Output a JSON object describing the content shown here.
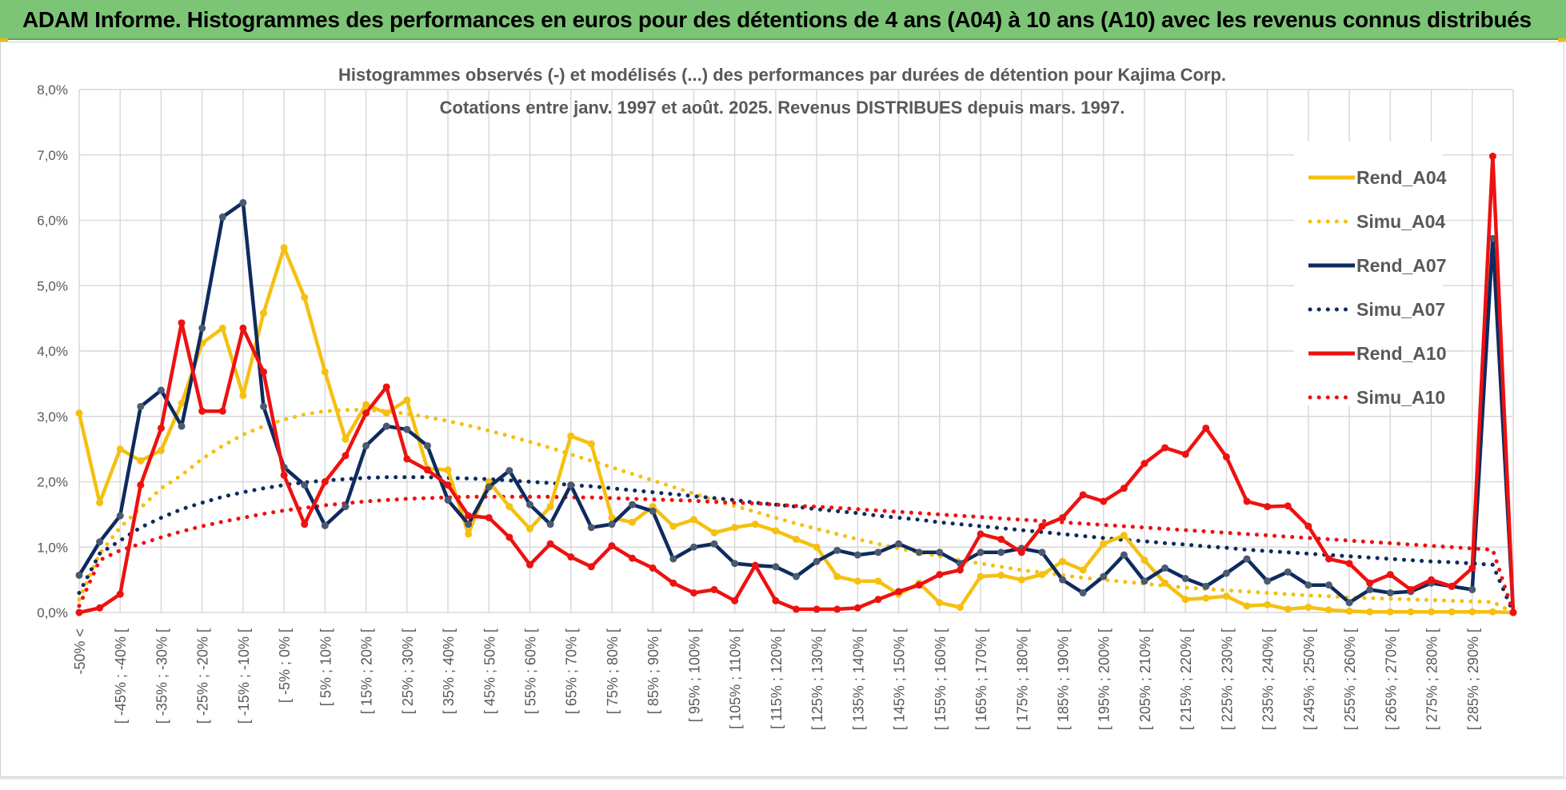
{
  "header": {
    "title": "ADAM Informe. Histogrammes des performances en euros pour des détentions de 4 ans (A04) à 10 ans (A10) avec les revenus connus distribués"
  },
  "colors": {
    "banner": "#7cc576",
    "A04": "#f5c010",
    "A07": "#0d2b5e",
    "A07_marker": "#4a5a70",
    "A10": "#ee1111",
    "grid": "#d9d9d9",
    "axis_text": "#595959"
  },
  "chart_data": {
    "type": "line",
    "title": "Histogrammes observés (-) et modélisés (...) des performances par durées de détention pour Kajima Corp.",
    "subtitle": "Cotations entre janv. 1997 et août. 2025. Revenus DISTRIBUES depuis mars. 1997.",
    "xlabel": "",
    "ylabel": "",
    "ylim": [
      0,
      8
    ],
    "y_ticks": [
      "0,0%",
      "1,0%",
      "2,0%",
      "3,0%",
      "4,0%",
      "5,0%",
      "6,0%",
      "7,0%",
      "8,0%"
    ],
    "grid": true,
    "legend_position": "right",
    "x_labels": [
      "-50% <",
      "[ -45% ; -40% [",
      "[ -35% ; -30% [",
      "[ -25% ; -20% [",
      "[ -15% ; -10% [",
      "[ -5% ; 0% [",
      "[ 5% ; 10% [",
      "[ 15% ; 20% [",
      "[ 25% ; 30% [",
      "[ 35% ; 40% [",
      "[ 45% ; 50% [",
      "[ 55% ; 60% [",
      "[ 65% ; 70% [",
      "[ 75% ; 80% [",
      "[ 85% ; 90% [",
      "[ 95% ; 100% [",
      "[ 105% ; 110% [",
      "[ 115% ; 120% [",
      "[ 125% ; 130% [",
      "[ 135% ; 140% [",
      "[ 145% ; 150% [",
      "[ 155% ; 160% [",
      "[ 165% ; 170% [",
      "[ 175% ; 180% [",
      "[ 185% ; 190% [",
      "[ 195% ; 200% [",
      "[ 205% ; 210% [",
      "[ 215% ; 220% [",
      "[ 225% ; 230% [",
      "[ 235% ; 240% [",
      "[ 245% ; 250% [",
      "[ 255% ; 260% [",
      "[ 265% ; 270% [",
      "[ 275% ; 280% [",
      "[ 285% ; 290% ["
    ],
    "series": [
      {
        "name": "Rend_A04",
        "style": "solid",
        "color": "#f5c010",
        "values": [
          3.05,
          1.68,
          2.5,
          2.32,
          2.48,
          3.2,
          4.12,
          4.35,
          3.32,
          4.58,
          5.58,
          4.82,
          3.68,
          2.65,
          3.18,
          3.05,
          3.25,
          2.2,
          2.18,
          1.2,
          2.0,
          1.62,
          1.28,
          1.62,
          2.7,
          2.58,
          1.45,
          1.38,
          1.62,
          1.32,
          1.42,
          1.22,
          1.3,
          1.35,
          1.25,
          1.12,
          1.0,
          0.55,
          0.48,
          0.48,
          0.28,
          0.45,
          0.15,
          0.08,
          0.55,
          0.57,
          0.5,
          0.58,
          0.78,
          0.65,
          1.05,
          1.18,
          0.8,
          0.45,
          0.2,
          0.22,
          0.25,
          0.1,
          0.12,
          0.05,
          0.08,
          0.04,
          0.02,
          0.01,
          0.01,
          0.01,
          0.01,
          0.01,
          0.01,
          0.01,
          0.0
        ]
      },
      {
        "name": "Simu_A04",
        "style": "dotted",
        "color": "#f5c010",
        "values": [
          0.2,
          0.9,
          1.3,
          1.6,
          1.9,
          2.1,
          2.35,
          2.55,
          2.72,
          2.85,
          2.95,
          3.03,
          3.08,
          3.1,
          3.1,
          3.08,
          3.04,
          2.99,
          2.93,
          2.86,
          2.78,
          2.7,
          2.61,
          2.52,
          2.42,
          2.32,
          2.22,
          2.12,
          2.02,
          1.92,
          1.82,
          1.72,
          1.63,
          1.54,
          1.45,
          1.36,
          1.28,
          1.2,
          1.12,
          1.05,
          0.98,
          0.92,
          0.86,
          0.8,
          0.75,
          0.7,
          0.65,
          0.61,
          0.57,
          0.53,
          0.5,
          0.47,
          0.44,
          0.41,
          0.38,
          0.36,
          0.34,
          0.32,
          0.3,
          0.28,
          0.26,
          0.25,
          0.23,
          0.22,
          0.21,
          0.2,
          0.19,
          0.18,
          0.17,
          0.16,
          0.0
        ]
      },
      {
        "name": "Rend_A07",
        "style": "solid",
        "color": "#0d2b5e",
        "values": [
          0.57,
          1.08,
          1.48,
          3.15,
          3.4,
          2.85,
          4.35,
          6.05,
          6.27,
          3.15,
          2.22,
          1.95,
          1.33,
          1.62,
          2.55,
          2.85,
          2.8,
          2.55,
          1.72,
          1.35,
          1.92,
          2.17,
          1.65,
          1.35,
          1.95,
          1.3,
          1.35,
          1.65,
          1.55,
          0.82,
          1.0,
          1.05,
          0.75,
          0.72,
          0.7,
          0.55,
          0.78,
          0.95,
          0.88,
          0.92,
          1.05,
          0.92,
          0.92,
          0.75,
          0.92,
          0.92,
          0.98,
          0.92,
          0.5,
          0.3,
          0.55,
          0.88,
          0.48,
          0.68,
          0.52,
          0.4,
          0.6,
          0.82,
          0.48,
          0.62,
          0.42,
          0.42,
          0.15,
          0.35,
          0.3,
          0.32,
          0.45,
          0.4,
          0.35,
          5.72,
          0.0
        ]
      },
      {
        "name": "Simu_A07",
        "style": "dotted",
        "color": "#0d2b5e",
        "values": [
          0.3,
          0.9,
          1.1,
          1.3,
          1.45,
          1.58,
          1.68,
          1.77,
          1.84,
          1.9,
          1.95,
          1.99,
          2.02,
          2.04,
          2.06,
          2.07,
          2.07,
          2.07,
          2.06,
          2.05,
          2.04,
          2.02,
          2.0,
          1.98,
          1.95,
          1.93,
          1.9,
          1.87,
          1.84,
          1.81,
          1.78,
          1.75,
          1.72,
          1.68,
          1.65,
          1.62,
          1.58,
          1.55,
          1.52,
          1.48,
          1.45,
          1.42,
          1.38,
          1.35,
          1.32,
          1.29,
          1.26,
          1.23,
          1.2,
          1.17,
          1.14,
          1.11,
          1.09,
          1.06,
          1.04,
          1.01,
          0.99,
          0.96,
          0.94,
          0.92,
          0.9,
          0.88,
          0.86,
          0.84,
          0.82,
          0.8,
          0.78,
          0.77,
          0.75,
          0.73,
          0.0
        ]
      },
      {
        "name": "Rend_A10",
        "style": "solid",
        "color": "#ee1111",
        "values": [
          0.0,
          0.07,
          0.28,
          1.95,
          2.82,
          4.43,
          3.08,
          3.08,
          4.35,
          3.68,
          2.1,
          1.35,
          2.0,
          2.4,
          3.05,
          3.45,
          2.35,
          2.18,
          1.95,
          1.48,
          1.45,
          1.15,
          0.73,
          1.05,
          0.85,
          0.7,
          1.02,
          0.83,
          0.68,
          0.45,
          0.3,
          0.35,
          0.18,
          0.72,
          0.18,
          0.05,
          0.05,
          0.05,
          0.07,
          0.2,
          0.32,
          0.42,
          0.58,
          0.65,
          1.2,
          1.12,
          0.92,
          1.32,
          1.45,
          1.8,
          1.7,
          1.9,
          2.28,
          2.52,
          2.42,
          2.82,
          2.38,
          1.7,
          1.62,
          1.63,
          1.32,
          0.82,
          0.75,
          0.45,
          0.58,
          0.35,
          0.5,
          0.4,
          0.68,
          6.98,
          0.0
        ]
      },
      {
        "name": "Simu_A10",
        "style": "dotted",
        "color": "#ee1111",
        "values": [
          0.1,
          0.8,
          0.95,
          1.05,
          1.15,
          1.24,
          1.32,
          1.39,
          1.45,
          1.51,
          1.56,
          1.6,
          1.64,
          1.67,
          1.7,
          1.72,
          1.74,
          1.75,
          1.76,
          1.77,
          1.77,
          1.77,
          1.77,
          1.77,
          1.76,
          1.76,
          1.75,
          1.74,
          1.73,
          1.72,
          1.71,
          1.69,
          1.68,
          1.67,
          1.65,
          1.63,
          1.62,
          1.6,
          1.58,
          1.56,
          1.54,
          1.52,
          1.5,
          1.48,
          1.46,
          1.44,
          1.42,
          1.4,
          1.38,
          1.36,
          1.34,
          1.32,
          1.3,
          1.28,
          1.26,
          1.24,
          1.22,
          1.2,
          1.18,
          1.16,
          1.14,
          1.12,
          1.1,
          1.08,
          1.06,
          1.04,
          1.02,
          1.0,
          0.98,
          0.96,
          0.0
        ]
      }
    ]
  }
}
